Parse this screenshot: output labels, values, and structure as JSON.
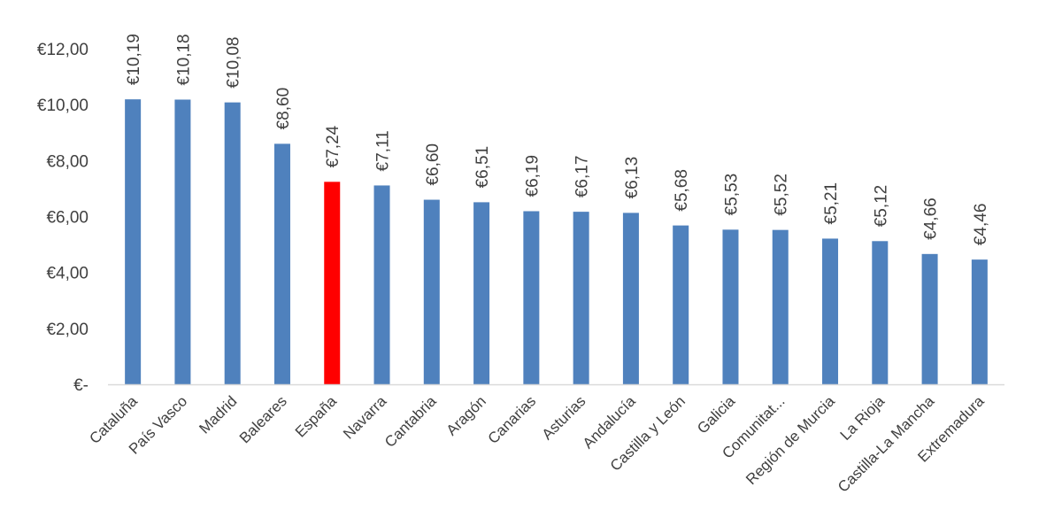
{
  "chart_data": {
    "type": "bar",
    "categories": [
      "Cataluña",
      "País Vasco",
      "Madrid",
      "Baleares",
      "España",
      "Navarra",
      "Cantabria",
      "Aragón",
      "Canarias",
      "Asturias",
      "Andalucía",
      "Castilla y León",
      "Galicia",
      "Comunitat...",
      "Región de Murcia",
      "La Rioja",
      "Castilla-La Mancha",
      "Extremadura"
    ],
    "values": [
      10.19,
      10.18,
      10.08,
      8.6,
      7.24,
      7.11,
      6.6,
      6.51,
      6.19,
      6.17,
      6.13,
      5.68,
      5.53,
      5.52,
      5.21,
      5.12,
      4.66,
      4.46
    ],
    "data_labels": [
      "€10,19",
      "€10,18",
      "€10,08",
      "€8,60",
      "€7,24",
      "€7,11",
      "€6,60",
      "€6,51",
      "€6,19",
      "€6,17",
      "€6,13",
      "€5,68",
      "€5,53",
      "€5,52",
      "€5,21",
      "€5,12",
      "€4,66",
      "€4,46"
    ],
    "y_ticks": [
      0,
      2,
      4,
      6,
      8,
      10,
      12
    ],
    "y_tick_labels": [
      "€-",
      "€2,00",
      "€4,00",
      "€6,00",
      "€8,00",
      "€10,00",
      "€12,00"
    ],
    "ylim": [
      0,
      12
    ],
    "title": "",
    "xlabel": "",
    "ylabel": "",
    "grid": false,
    "colors": {
      "default": "#4f81bd",
      "highlight": "#ff0000",
      "axis": "#d9d9d9",
      "text": "#404040"
    },
    "highlight_category": "España"
  }
}
